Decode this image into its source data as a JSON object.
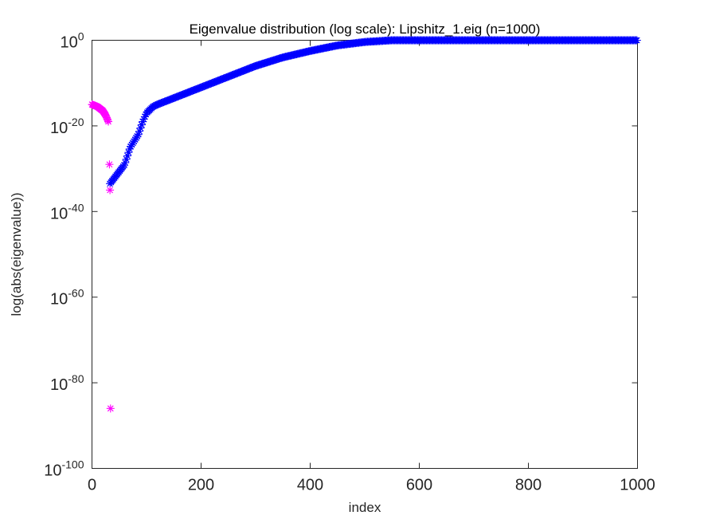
{
  "chart_data": {
    "type": "scatter",
    "title": "Eigenvalue distribution (log scale): Lipshitz_1.eig (n=1000)",
    "xlabel": "index",
    "ylabel": "log(abs(eigenvalue))",
    "xlim": [
      0,
      1000
    ],
    "ylim_log10": [
      -100,
      0
    ],
    "y_scale": "log",
    "grid": false,
    "legend": "none",
    "marker": "asterisk",
    "x_ticks": [
      "0",
      "200",
      "400",
      "600",
      "800",
      "1000"
    ],
    "y_ticks": [
      {
        "base": "10",
        "exp": "0"
      },
      {
        "base": "10",
        "exp": "-20"
      },
      {
        "base": "10",
        "exp": "-40"
      },
      {
        "base": "10",
        "exp": "-60"
      },
      {
        "base": "10",
        "exp": "-80"
      },
      {
        "base": "10",
        "exp": "-100"
      }
    ],
    "series": [
      {
        "color": "#0000ff",
        "log10_curve": [
          [
            33,
            -33.5
          ],
          [
            45,
            -31.5
          ],
          [
            60,
            -29
          ],
          [
            70,
            -25
          ],
          [
            85,
            -22
          ],
          [
            93,
            -19
          ],
          [
            100,
            -17
          ],
          [
            112,
            -15.5
          ],
          [
            120,
            -15
          ],
          [
            140,
            -14
          ],
          [
            160,
            -13
          ],
          [
            200,
            -11
          ],
          [
            250,
            -8.5
          ],
          [
            300,
            -6
          ],
          [
            350,
            -4
          ],
          [
            400,
            -2.5
          ],
          [
            450,
            -1.2
          ],
          [
            500,
            -0.4
          ],
          [
            550,
            0
          ],
          [
            1000,
            0
          ]
        ]
      },
      {
        "color": "#ff00ff",
        "log10_curve": [
          [
            0,
            -15
          ],
          [
            10,
            -15.5
          ],
          [
            20,
            -16.5
          ],
          [
            25,
            -17.5
          ],
          [
            30,
            -19
          ]
        ],
        "points": [
          [
            32,
            -29
          ],
          [
            33,
            -35
          ],
          [
            34,
            -86
          ]
        ]
      }
    ]
  }
}
